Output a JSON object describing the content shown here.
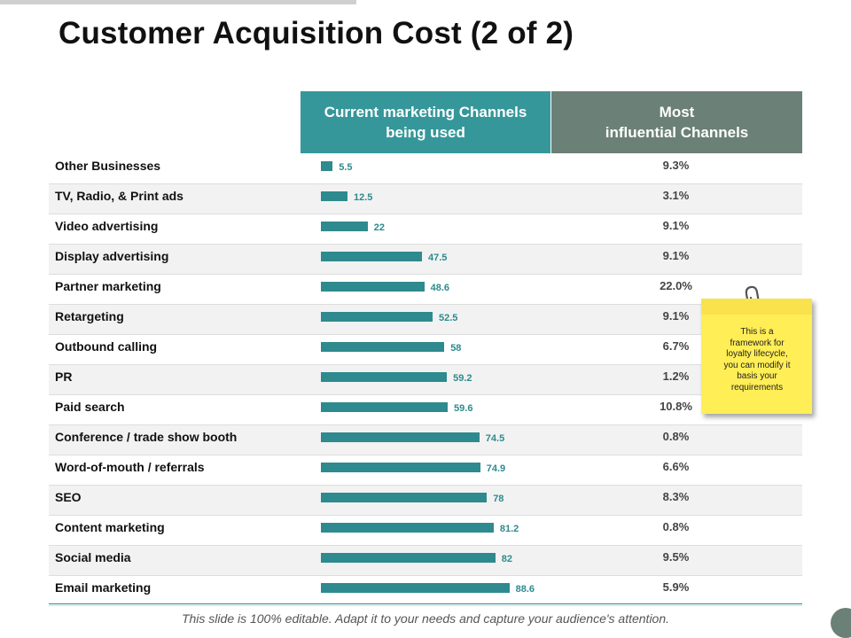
{
  "title": "Customer Acquisition Cost (2 of 2)",
  "columns": {
    "current": "Current marketing Channels\nbeing used",
    "influential": "Most\ninfluential Channels"
  },
  "sticky_note": "This is a\nframework for\nloyalty lifecycle,\nyou can modify it\nbasis your\nrequirements",
  "footer": "This slide is 100% editable. Adapt it to your needs and capture your audience's attention.",
  "colors": {
    "teal": "#36979a",
    "bar": "#2e8a8e",
    "gray_green": "#6b8076",
    "note": "#ffee55"
  },
  "chart_data": {
    "type": "bar",
    "orientation": "horizontal",
    "title": "Customer Acquisition Cost (2 of 2)",
    "xlim": [
      0,
      100
    ],
    "categories": [
      "Other Businesses",
      "TV, Radio, & Print ads",
      "Video advertising",
      "Display advertising",
      "Partner marketing",
      "Retargeting",
      "Outbound calling",
      "PR",
      "Paid search",
      "Conference / trade show booth",
      "Word-of-mouth / referrals",
      "SEO",
      "Content marketing",
      "Social media",
      "Email marketing"
    ],
    "series": [
      {
        "name": "Current marketing Channels being used",
        "values": [
          5.5,
          12.5,
          22,
          47.5,
          48.6,
          52.5,
          58,
          59.2,
          59.6,
          74.5,
          74.9,
          78,
          81.2,
          82,
          88.6
        ],
        "labels": [
          "5.5",
          "12.5",
          "22",
          "47.5",
          "48.6",
          "52.5",
          "58",
          "59.2",
          "59.6",
          "74.5",
          "74.9",
          "78",
          "81.2",
          "82",
          "88.6"
        ]
      },
      {
        "name": "Most influential Channels",
        "values": [
          9.3,
          3.1,
          9.1,
          9.1,
          22.0,
          9.1,
          6.7,
          1.2,
          10.8,
          0.8,
          6.6,
          8.3,
          0.8,
          9.5,
          5.9
        ],
        "labels": [
          "9.3%",
          "3.1%",
          "9.1%",
          "9.1%",
          "22.0%",
          "9.1%",
          "6.7%",
          "1.2%",
          "10.8%",
          "0.8%",
          "6.6%",
          "8.3%",
          "0.8%",
          "9.5%",
          "5.9%"
        ]
      }
    ]
  }
}
